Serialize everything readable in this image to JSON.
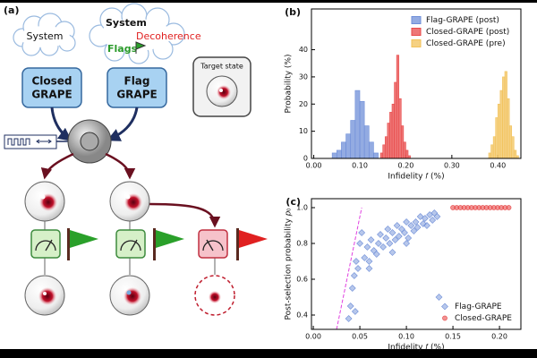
{
  "diagram": {
    "panel_label": "(a)",
    "cloud_left": "System",
    "cloud_right": {
      "title": "System",
      "decoherence": "Decoherence",
      "flags": "Flags"
    },
    "box_left": [
      "Closed",
      "GRAPE"
    ],
    "box_right": [
      "Flag",
      "GRAPE"
    ],
    "target": "Target state"
  },
  "chart_data": [
    {
      "type": "histogram",
      "panel_label": "(b)",
      "xlabel": "Infidelity 𝑓 (%)",
      "ylabel": "Probability (%)",
      "xlim": [
        -0.005,
        0.45
      ],
      "ylim": [
        0,
        55
      ],
      "xticks": [
        {
          "value": 0,
          "label": "0.00"
        },
        {
          "value": 0.1,
          "label": "0.10"
        },
        {
          "value": 0.2,
          "label": "0.20"
        },
        {
          "value": 0.3,
          "label": "0.30"
        },
        {
          "value": 0.4,
          "label": "0.40"
        }
      ],
      "yticks": [
        0,
        10,
        20,
        30,
        40
      ],
      "legend": "upper right",
      "series": [
        {
          "name": "Flag-GRAPE (post)",
          "color": "#6f8fd8",
          "bins": [
            0.04,
            0.05,
            0.06,
            0.07,
            0.08,
            0.09,
            0.1,
            0.11,
            0.12,
            0.13,
            0.14
          ],
          "values": [
            2,
            3,
            6,
            9,
            14,
            25,
            21,
            12,
            6,
            2
          ]
        },
        {
          "name": "Closed-GRAPE (post)",
          "color": "#e84a4a",
          "bins": [
            0.145,
            0.15,
            0.155,
            0.16,
            0.165,
            0.17,
            0.175,
            0.18,
            0.185,
            0.19,
            0.195,
            0.2,
            0.205,
            0.21
          ],
          "values": [
            2,
            5,
            8,
            13,
            17,
            20,
            28,
            38,
            22,
            12,
            6,
            3,
            1
          ]
        },
        {
          "name": "Closed-GRAPE (pre)",
          "color": "#f2c25a",
          "bins": [
            0.38,
            0.385,
            0.39,
            0.395,
            0.4,
            0.405,
            0.41,
            0.415,
            0.42,
            0.425,
            0.43,
            0.435,
            0.44,
            0.445
          ],
          "values": [
            2,
            5,
            8,
            15,
            20,
            25,
            30,
            32,
            22,
            12,
            8,
            3,
            1
          ]
        }
      ]
    },
    {
      "type": "scatter",
      "panel_label": "(c)",
      "xlabel": "Infidelity 𝑓 (%)",
      "ylabel": "Post-selection probability 𝑝₀",
      "xlim": [
        -0.002,
        0.223
      ],
      "ylim": [
        0.32,
        1.05
      ],
      "xticks": [
        {
          "value": 0,
          "label": "0.00"
        },
        {
          "value": 0.05,
          "label": "0.05"
        },
        {
          "value": 0.1,
          "label": "0.10"
        },
        {
          "value": 0.15,
          "label": "0.15"
        },
        {
          "value": 0.2,
          "label": "0.20"
        }
      ],
      "yticks": [
        0.4,
        0.6,
        0.8,
        {
          "value": 1,
          "label": "1.0"
        }
      ],
      "legend": "lower right",
      "reference_line": {
        "color": "#e040e0",
        "x": [
          0.025,
          0.052
        ],
        "y": [
          0.32,
          1.0
        ]
      },
      "series": [
        {
          "name": "Flag-GRAPE",
          "color": "#6f8fd8",
          "marker": "diamond",
          "x": [
            0.038,
            0.04,
            0.042,
            0.044,
            0.046,
            0.048,
            0.05,
            0.052,
            0.055,
            0.058,
            0.06,
            0.062,
            0.065,
            0.068,
            0.07,
            0.072,
            0.075,
            0.078,
            0.08,
            0.082,
            0.085,
            0.088,
            0.09,
            0.092,
            0.095,
            0.098,
            0.1,
            0.102,
            0.105,
            0.108,
            0.11,
            0.112,
            0.115,
            0.118,
            0.12,
            0.122,
            0.125,
            0.128,
            0.13,
            0.133,
            0.135,
            0.06,
            0.085,
            0.1,
            0.045
          ],
          "values": [
            0.38,
            0.45,
            0.55,
            0.62,
            0.7,
            0.66,
            0.8,
            0.86,
            0.72,
            0.78,
            0.7,
            0.82,
            0.76,
            0.74,
            0.8,
            0.85,
            0.78,
            0.83,
            0.88,
            0.8,
            0.86,
            0.82,
            0.9,
            0.84,
            0.88,
            0.86,
            0.92,
            0.83,
            0.9,
            0.87,
            0.92,
            0.89,
            0.95,
            0.91,
            0.94,
            0.9,
            0.96,
            0.93,
            0.97,
            0.95,
            0.5,
            0.66,
            0.75,
            0.8,
            0.42
          ]
        },
        {
          "name": "Closed-GRAPE",
          "color": "#e84a4a",
          "marker": "circle",
          "x": [
            0.15,
            0.154,
            0.158,
            0.162,
            0.166,
            0.17,
            0.174,
            0.178,
            0.182,
            0.186,
            0.19,
            0.194,
            0.198,
            0.202,
            0.206,
            0.21
          ],
          "values": [
            1,
            1,
            1,
            1,
            1,
            1,
            1,
            1,
            1,
            1,
            1,
            1,
            1,
            1,
            1,
            1
          ]
        }
      ]
    }
  ]
}
